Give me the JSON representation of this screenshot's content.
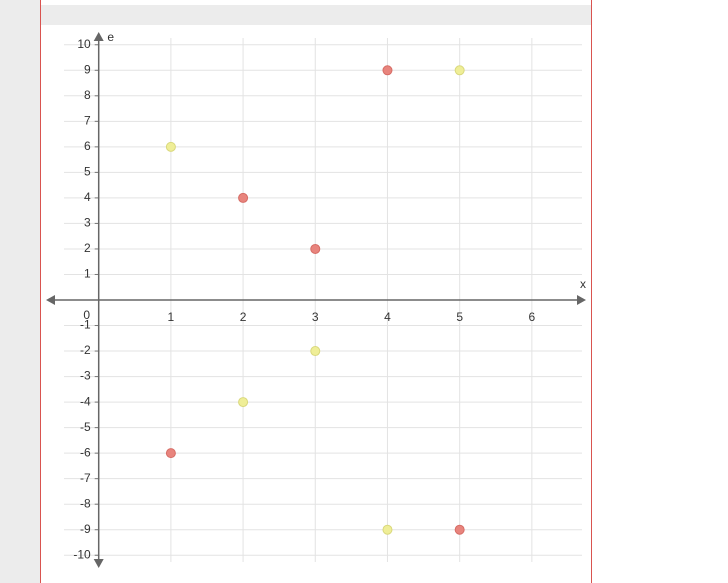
{
  "chart_data": {
    "type": "scatter",
    "x_label": "x",
    "y_label": "e",
    "xlim": [
      -0.73,
      6.75
    ],
    "ylim": [
      -10.5,
      10.5
    ],
    "xticks": [
      0,
      1,
      2,
      3,
      4,
      5,
      6
    ],
    "yticks": [
      -10,
      -9,
      -8,
      -7,
      -6,
      -5,
      -4,
      -3,
      -2,
      -1,
      1,
      2,
      3,
      4,
      5,
      6,
      7,
      8,
      9,
      10
    ],
    "grid": true,
    "series": [
      {
        "color": "#e8847d",
        "x": [
          4,
          2,
          3,
          1,
          5
        ],
        "values": [
          9,
          4,
          2,
          -6,
          -9
        ]
      },
      {
        "color": "#efee97",
        "x": [
          1,
          5,
          3,
          2,
          4
        ],
        "values": [
          6,
          9,
          -2,
          -4,
          -9
        ]
      }
    ]
  }
}
